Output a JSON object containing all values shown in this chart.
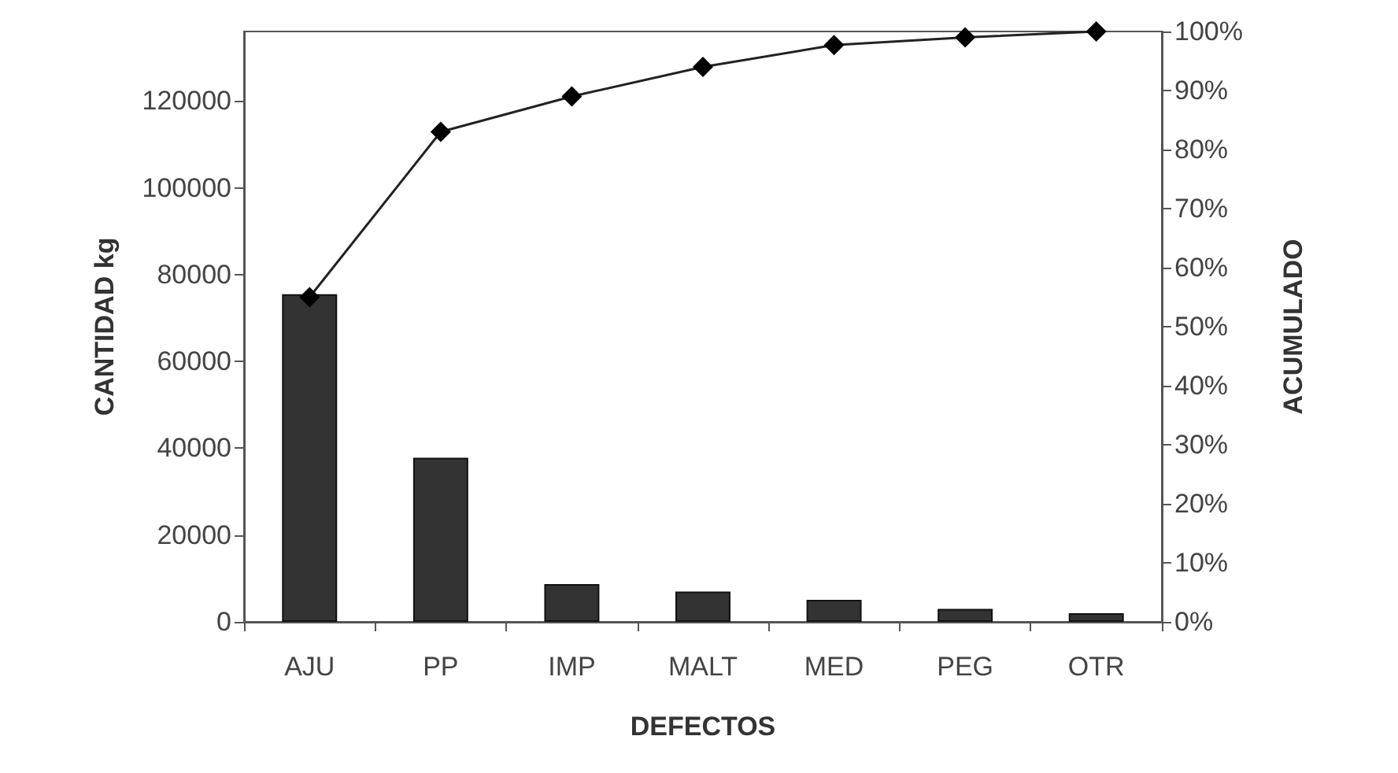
{
  "chart_data": {
    "type": "bar",
    "xlabel": "DEFECTOS",
    "ylabel": "CANTIDAD kg",
    "y2label": "ACUMULADO",
    "categories": [
      "AJU",
      "PP",
      "IMP",
      "MALT",
      "MED",
      "PEG",
      "OTR"
    ],
    "series": [
      {
        "color": "#333333",
        "values": [
          75500,
          37800,
          8700,
          7000,
          5100,
          3000,
          2000
        ]
      },
      {
        "type": "line",
        "axis": "y2",
        "color": "#222222",
        "marker": "diamond",
        "values": [
          55,
          83,
          89,
          94,
          97.7,
          99,
          100
        ]
      }
    ],
    "ylim": [
      0,
      136000
    ],
    "yticks": [
      0,
      20000,
      40000,
      60000,
      80000,
      100000,
      120000
    ],
    "y2lim": [
      0,
      100
    ],
    "y2ticks": [
      {
        "value": 0,
        "label": "0%"
      },
      {
        "value": 10,
        "label": "10%"
      },
      {
        "value": 20,
        "label": "20%"
      },
      {
        "value": 30,
        "label": "30%"
      },
      {
        "value": 40,
        "label": "40%"
      },
      {
        "value": 50,
        "label": "50%"
      },
      {
        "value": 60,
        "label": "60%"
      },
      {
        "value": 70,
        "label": "70%"
      },
      {
        "value": 80,
        "label": "80%"
      },
      {
        "value": 90,
        "label": "90%"
      },
      {
        "value": 100,
        "label": "100%"
      }
    ],
    "grid": false
  }
}
